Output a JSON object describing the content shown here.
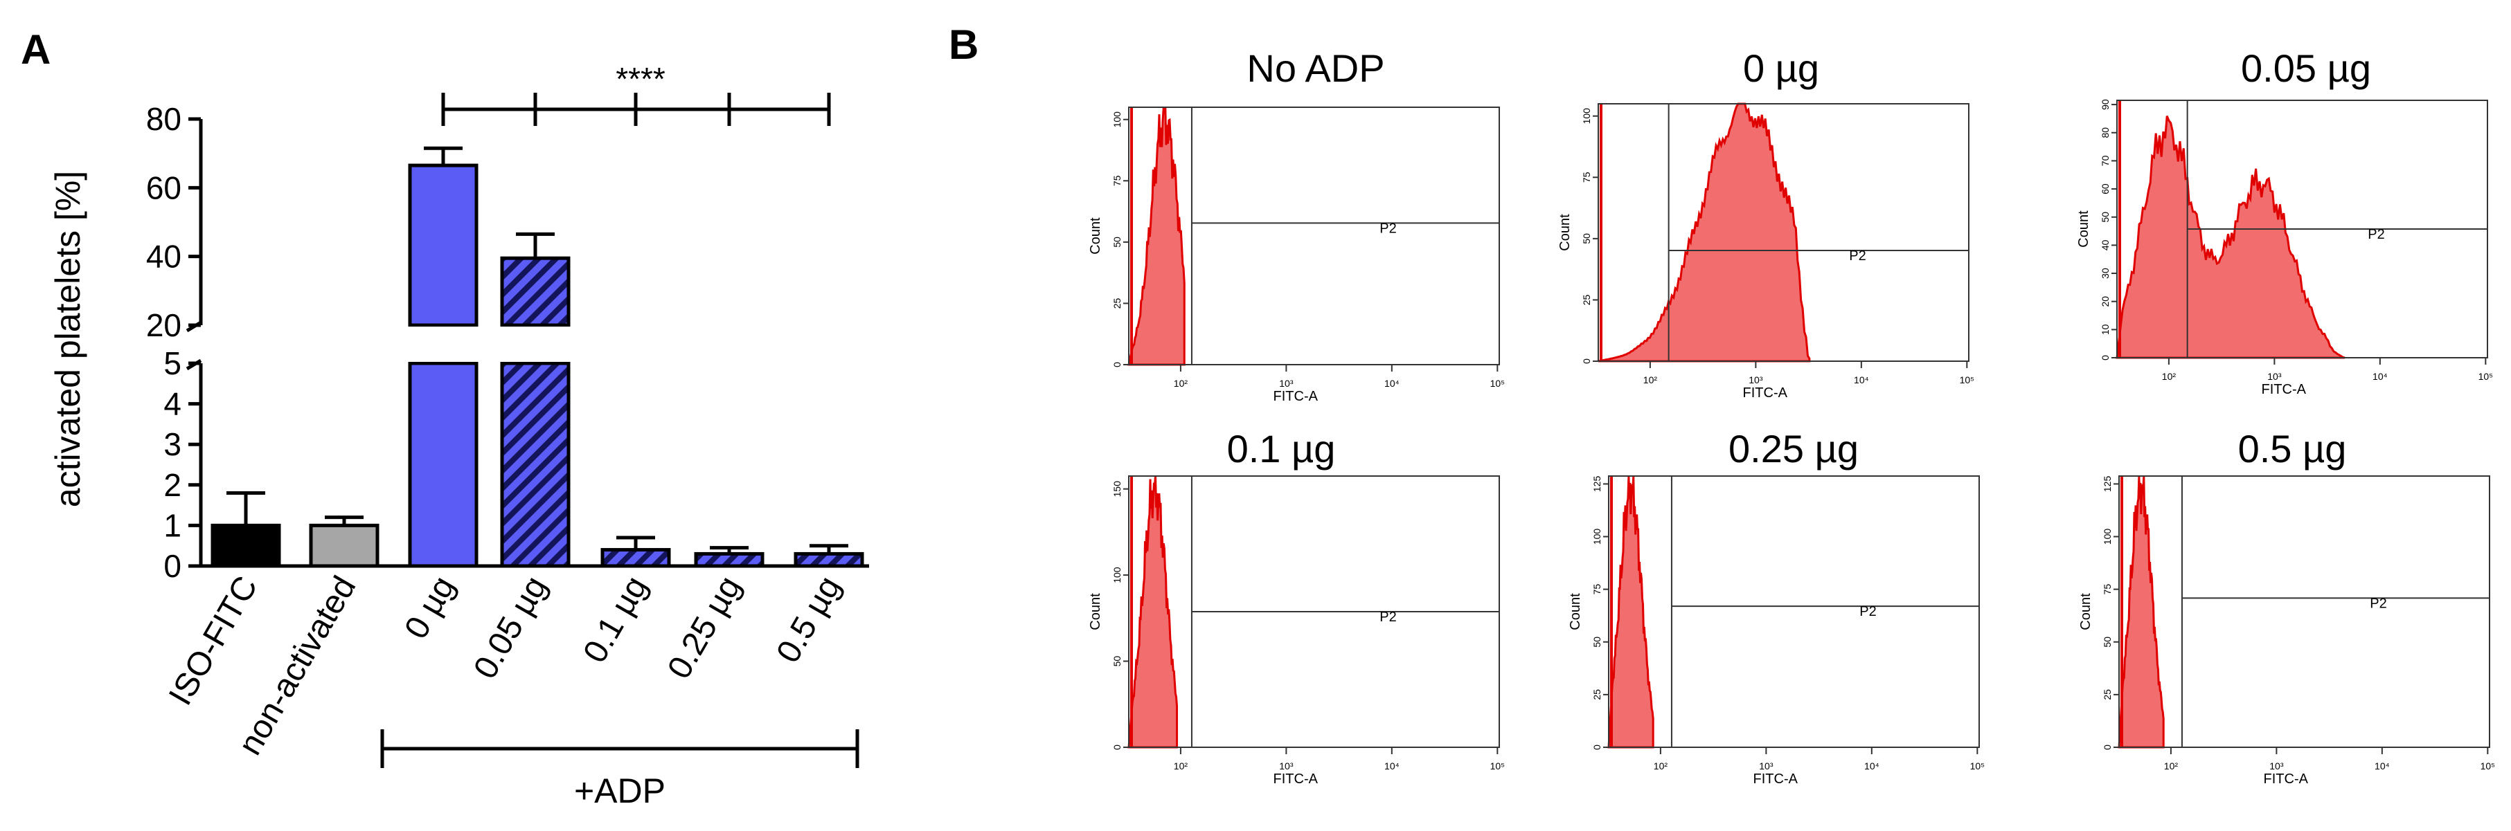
{
  "panel_a_label": "A",
  "panel_b_label": "B",
  "chart_data": [
    {
      "type": "bar",
      "panel": "A",
      "title": "",
      "xlabel": "",
      "ylabel": "activated platelets [%]",
      "categories": [
        "ISO-FITC",
        "non-activated",
        "0 µg",
        "0.05 µg",
        "0.1 µg",
        "0.25 µg",
        "0.5 µg"
      ],
      "values": [
        1.0,
        1.0,
        66.5,
        39.5,
        0.4,
        0.3,
        0.3
      ],
      "errors": [
        0.8,
        0.2,
        5.0,
        7.0,
        0.3,
        0.15,
        0.2
      ],
      "colors": [
        "#000000",
        "#a6a6a6",
        "#5b5bf5",
        "#3d3dd9",
        "#3d3dd9",
        "#3d3dd9",
        "#3d3dd9"
      ],
      "hatched": [
        false,
        false,
        false,
        true,
        true,
        true,
        true
      ],
      "y_axis_broken": true,
      "y_lower_ticks": [
        "0",
        "1",
        "2",
        "3",
        "4",
        "5"
      ],
      "y_upper_ticks": [
        "20",
        "40",
        "60",
        "80"
      ],
      "ylim_lower": [
        0,
        5
      ],
      "ylim_upper": [
        20,
        80
      ],
      "significance": "****",
      "group_label": "+ADP"
    },
    {
      "type": "histogram",
      "panel": "B",
      "xlabel": "FITC-A",
      "ylabel": "Count",
      "gate_label": "P2",
      "x_tick_labels": [
        "10²",
        "10³",
        "10⁴",
        "10⁵"
      ],
      "histograms": [
        {
          "title": "No ADP",
          "y_ticks": [
            "0",
            "25",
            "50",
            "75",
            "100"
          ],
          "gate_frac": 0.55,
          "fill": "#f26d6d",
          "line": "#e00000"
        },
        {
          "title": "0 µg",
          "y_ticks": [
            "0",
            "25",
            "50",
            "75",
            "100"
          ],
          "gate_frac": 0.43,
          "fill": "#f26d6d",
          "line": "#e00000"
        },
        {
          "title": "0.05 µg",
          "y_ticks": [
            "0",
            "10",
            "20",
            "30",
            "40",
            "50",
            "60",
            "70",
            "80",
            "90"
          ],
          "gate_frac": 0.5,
          "fill": "#f26d6d",
          "line": "#e00000"
        },
        {
          "title": "0.1 µg",
          "y_ticks": [
            "0",
            "50",
            "100",
            "150"
          ],
          "gate_frac": 0.5,
          "fill": "#f26d6d",
          "line": "#e00000"
        },
        {
          "title": "0.25 µg",
          "y_ticks": [
            "0",
            "25",
            "50",
            "75",
            "100",
            "125"
          ],
          "gate_frac": 0.52,
          "fill": "#f26d6d",
          "line": "#e00000"
        },
        {
          "title": "0.5 µg",
          "y_ticks": [
            "0",
            "25",
            "50",
            "75",
            "100",
            "125"
          ],
          "gate_frac": 0.55,
          "fill": "#f26d6d",
          "line": "#e00000"
        }
      ]
    }
  ]
}
